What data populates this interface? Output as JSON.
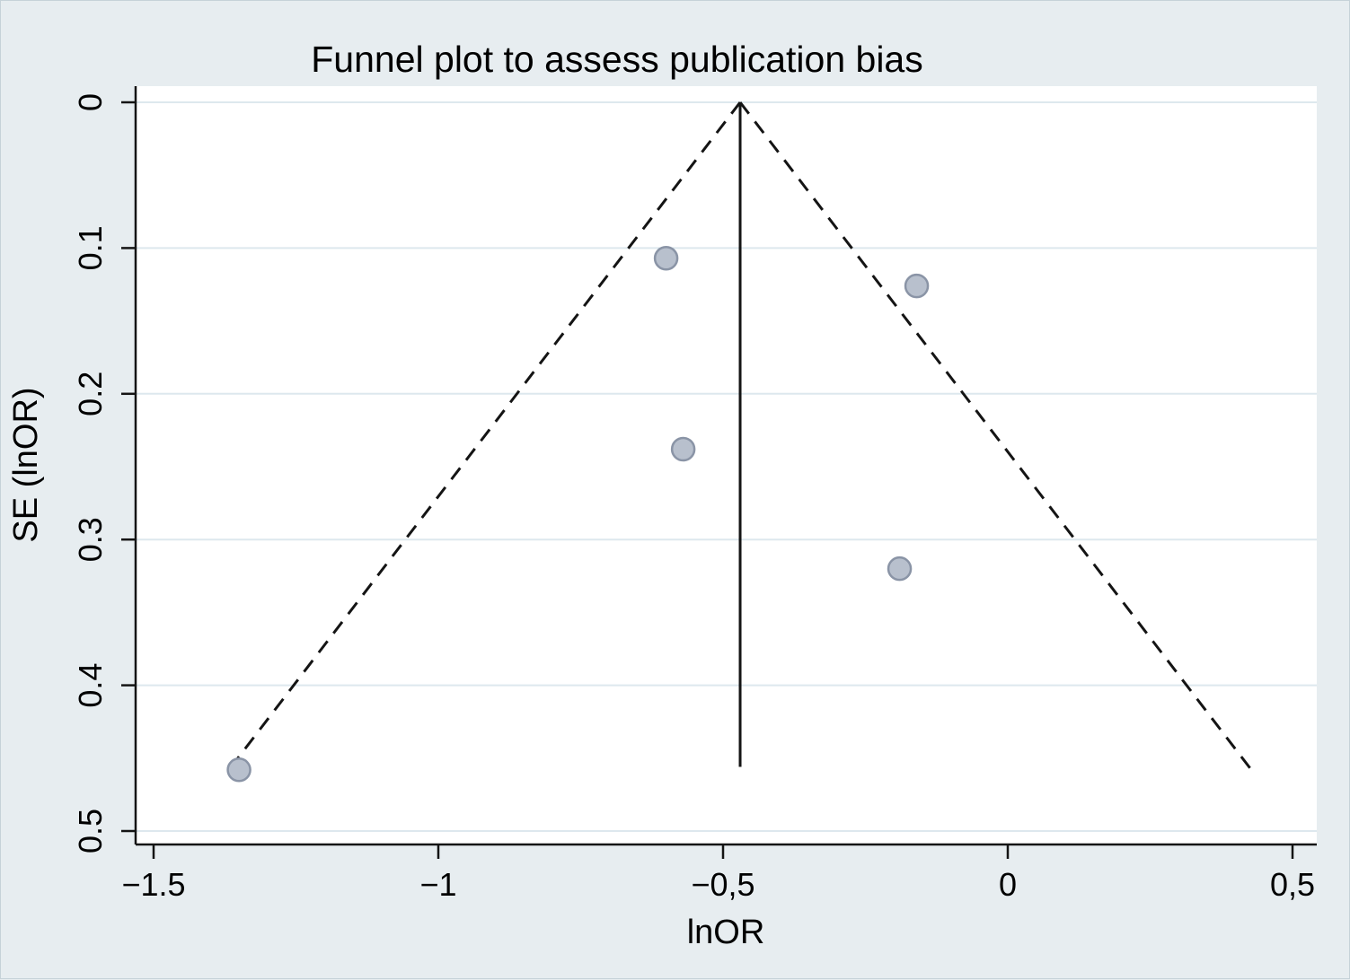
{
  "chart_data": {
    "type": "scatter",
    "subtype": "funnel-plot",
    "title": "Funnel plot to assess publication bias",
    "xlabel": "lnOR",
    "ylabel": "SE (lnOR)",
    "xlim": [
      -1.5,
      0.5
    ],
    "ylim": [
      0,
      0.5
    ],
    "y_axis_direction": "inverted (SE = 0 at top, 0.5 at bottom)",
    "grid": "horizontal",
    "legend": "none",
    "x_ticks": [
      {
        "value": -1.5,
        "label": "−1.5"
      },
      {
        "value": -1.0,
        "label": "−1"
      },
      {
        "value": -0.5,
        "label": "−0,5"
      },
      {
        "value": 0.0,
        "label": "0"
      },
      {
        "value": 0.5,
        "label": "0,5"
      }
    ],
    "y_ticks": [
      {
        "value": 0.0,
        "label": "0"
      },
      {
        "value": 0.1,
        "label": "0.1"
      },
      {
        "value": 0.2,
        "label": "0.2"
      },
      {
        "value": 0.3,
        "label": "0.3"
      },
      {
        "value": 0.4,
        "label": "0.4"
      },
      {
        "value": 0.5,
        "label": "0.5"
      }
    ],
    "points": [
      {
        "lnOR": -0.6,
        "SE": 0.107
      },
      {
        "lnOR": -0.16,
        "SE": 0.126
      },
      {
        "lnOR": -0.57,
        "SE": 0.238
      },
      {
        "lnOR": -0.19,
        "SE": 0.32
      },
      {
        "lnOR": -1.35,
        "SE": 0.458
      }
    ],
    "funnel": {
      "pooled_estimate": -0.47,
      "z": 1.96,
      "se_max": 0.46,
      "center_line_se_end": 0.456
    },
    "colors": {
      "background": "#e7edf0",
      "plot_background": "#ffffff",
      "gridline": "#dde8ee",
      "line": "#141414",
      "marker_fill": "#b8c0cd",
      "marker_stroke": "#8a94a6"
    }
  }
}
